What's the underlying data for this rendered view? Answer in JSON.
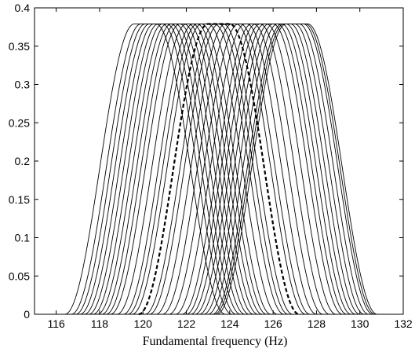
{
  "chart_data": {
    "type": "line",
    "title": "",
    "xlabel": "Fundamental frequency (Hz)",
    "ylabel": "",
    "xlim": [
      115,
      132
    ],
    "ylim": [
      0,
      0.4
    ],
    "x_ticks": [
      116,
      118,
      120,
      122,
      124,
      126,
      128,
      130,
      132
    ],
    "y_ticks": [
      0,
      0.05,
      0.1,
      0.15,
      0.2,
      0.25,
      0.3,
      0.35,
      0.4
    ],
    "y_tick_labels": [
      "0",
      "0.05",
      "0.1",
      "0.15",
      "0.2",
      "0.25",
      "0.3",
      "0.35",
      "0.4"
    ],
    "grid": false,
    "legend": "none",
    "curve_profile": {
      "shape": "flat-topped bell",
      "peak_value": 0.379,
      "plateau_half_width_hz": 0.5,
      "rise_width_hz": 3.2
    },
    "series": [
      {
        "center": 120.1,
        "style": "solid"
      },
      {
        "center": 120.4,
        "style": "solid"
      },
      {
        "center": 120.6,
        "style": "solid"
      },
      {
        "center": 120.8,
        "style": "solid"
      },
      {
        "center": 121.0,
        "style": "solid"
      },
      {
        "center": 121.2,
        "style": "solid"
      },
      {
        "center": 121.4,
        "style": "solid"
      },
      {
        "center": 121.6,
        "style": "solid"
      },
      {
        "center": 121.8,
        "style": "solid"
      },
      {
        "center": 122.0,
        "style": "solid"
      },
      {
        "center": 122.2,
        "style": "solid"
      },
      {
        "center": 122.5,
        "style": "solid"
      },
      {
        "center": 122.8,
        "style": "solid"
      },
      {
        "center": 123.0,
        "style": "solid"
      },
      {
        "center": 123.2,
        "style": "solid"
      },
      {
        "center": 123.5,
        "style": "dashed"
      },
      {
        "center": 123.8,
        "style": "solid"
      },
      {
        "center": 124.0,
        "style": "solid"
      },
      {
        "center": 124.3,
        "style": "solid"
      },
      {
        "center": 124.6,
        "style": "solid"
      },
      {
        "center": 124.9,
        "style": "solid"
      },
      {
        "center": 125.2,
        "style": "solid"
      },
      {
        "center": 125.5,
        "style": "solid"
      },
      {
        "center": 125.7,
        "style": "solid"
      },
      {
        "center": 125.9,
        "style": "solid"
      },
      {
        "center": 126.1,
        "style": "solid"
      },
      {
        "center": 126.3,
        "style": "solid"
      },
      {
        "center": 126.5,
        "style": "solid"
      },
      {
        "center": 126.7,
        "style": "solid"
      },
      {
        "center": 126.9,
        "style": "solid"
      },
      {
        "center": 127.0,
        "style": "solid"
      },
      {
        "center": 127.1,
        "style": "solid"
      }
    ]
  }
}
